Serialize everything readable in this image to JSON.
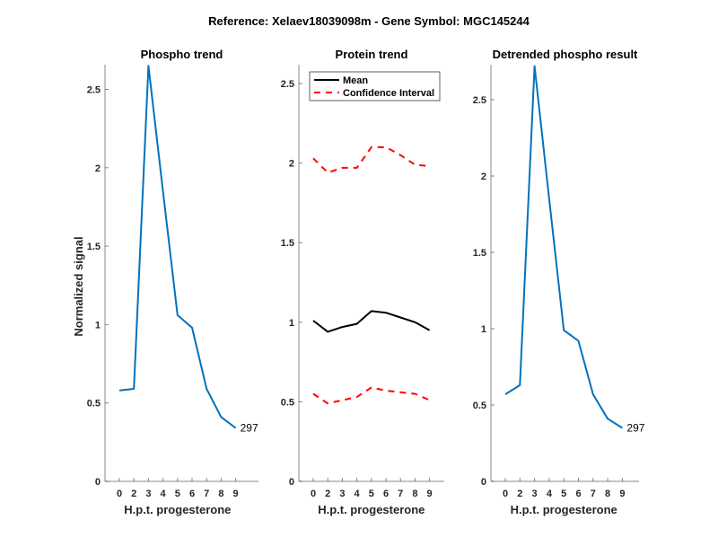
{
  "figure": {
    "title": "Reference:  Xelaev18039098m - Gene Symbol:  MGC145244"
  },
  "colors": {
    "phospho": "#0072BD",
    "mean": "#000000",
    "ci": "#FF0000"
  },
  "chart_data": [
    {
      "type": "line",
      "title": "Phospho trend",
      "xlabel": "H.p.t. progesterone",
      "ylabel": "Normalized signal",
      "categories": [
        "0",
        "2",
        "3",
        "4",
        "5",
        "6",
        "7",
        "8",
        "9"
      ],
      "ylim": [
        0,
        2.65
      ],
      "yticks": [
        "0",
        "0.5",
        "1",
        "1.5",
        "2",
        "2.5"
      ],
      "series": [
        {
          "name": "Phospho",
          "values": [
            0.58,
            0.59,
            2.65,
            1.85,
            1.06,
            0.98,
            0.59,
            0.41,
            0.34
          ]
        }
      ],
      "annotation": "297"
    },
    {
      "type": "line",
      "title": "Protein trend",
      "xlabel": "H.p.t. progesterone",
      "categories": [
        "0",
        "2",
        "3",
        "4",
        "5",
        "6",
        "7",
        "8",
        "9"
      ],
      "ylim": [
        0,
        2.6
      ],
      "yticks": [
        "0",
        "0.5",
        "1",
        "1.5",
        "2",
        "2.5"
      ],
      "legend": {
        "placement": "top-left",
        "entries": [
          "Mean",
          "Confidence Interval"
        ]
      },
      "series": [
        {
          "name": "Mean",
          "values": [
            1.01,
            0.94,
            0.97,
            0.99,
            1.07,
            1.06,
            1.03,
            1.0,
            0.95
          ]
        },
        {
          "name": "Confidence Interval upper",
          "values": [
            2.03,
            1.94,
            1.97,
            1.97,
            2.1,
            2.1,
            2.05,
            1.99,
            1.98
          ]
        },
        {
          "name": "Confidence Interval lower",
          "values": [
            0.55,
            0.49,
            0.51,
            0.53,
            0.59,
            0.57,
            0.56,
            0.55,
            0.51
          ]
        }
      ]
    },
    {
      "type": "line",
      "title": "Detrended phospho result",
      "xlabel": "H.p.t. progesterone",
      "categories": [
        "0",
        "2",
        "3",
        "4",
        "5",
        "6",
        "7",
        "8",
        "9"
      ],
      "ylim": [
        0,
        2.72
      ],
      "yticks": [
        "0",
        "0.5",
        "1",
        "1.5",
        "2",
        "2.5"
      ],
      "series": [
        {
          "name": "Detrended",
          "values": [
            0.57,
            0.63,
            2.72,
            1.85,
            0.99,
            0.92,
            0.57,
            0.41,
            0.35
          ]
        }
      ],
      "annotation": "297"
    }
  ]
}
